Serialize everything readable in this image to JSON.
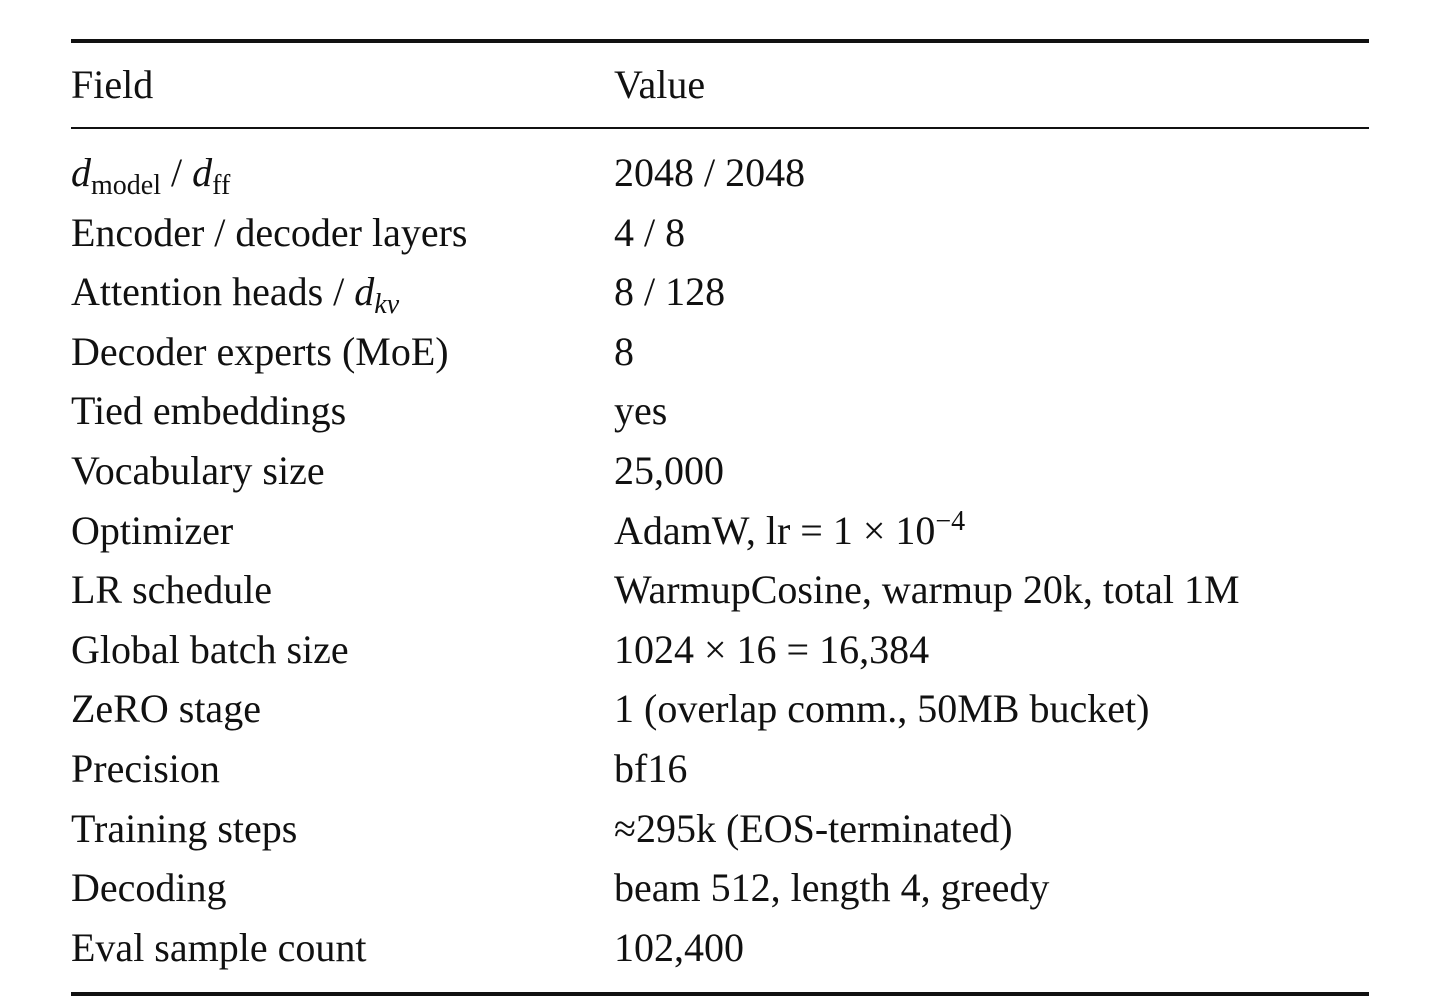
{
  "table": {
    "header": [
      "Field",
      "Value"
    ],
    "rows": [
      [
        [
          {
            "text": "d",
            "format": "italic"
          },
          {
            "text": "model",
            "format": "sub"
          },
          {
            "text": " / "
          },
          {
            "text": "d",
            "format": "italic"
          },
          {
            "text": "ff",
            "format": "sub"
          }
        ],
        "2048 / 2048"
      ],
      [
        "Encoder / decoder layers",
        "4 / 8"
      ],
      [
        [
          {
            "text": "Attention heads / "
          },
          {
            "text": "d",
            "format": "italic"
          },
          {
            "text": "kv",
            "format": "italic-sub"
          }
        ],
        "8 / 128"
      ],
      [
        "Decoder experts (MoE)",
        "8"
      ],
      [
        "Tied embeddings",
        "yes"
      ],
      [
        "Vocabulary size",
        "25,000"
      ],
      [
        "Optimizer",
        [
          {
            "text": "AdamW, lr = 1 × 10"
          },
          {
            "text": "−4",
            "format": "sup"
          }
        ]
      ],
      [
        "LR schedule",
        "WarmupCosine, warmup 20k, total 1M"
      ],
      [
        "Global batch size",
        "1024 × 16 = 16,384"
      ],
      [
        "ZeRO stage",
        "1 (overlap comm., 50MB bucket)"
      ],
      [
        "Precision",
        "bf16"
      ],
      [
        "Training steps",
        "≈295k (EOS-terminated)"
      ],
      [
        "Decoding",
        "beam 512, length 4, greedy"
      ],
      [
        "Eval sample count",
        "102,400"
      ]
    ]
  }
}
